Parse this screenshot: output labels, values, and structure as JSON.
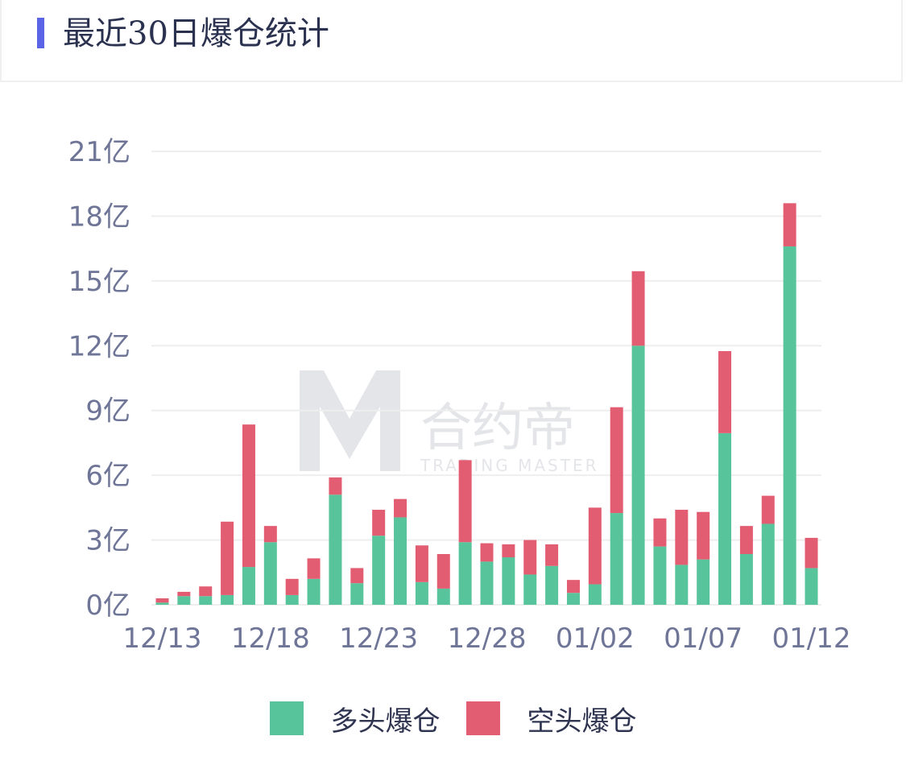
{
  "header": {
    "title": "最近30日爆仓统计"
  },
  "watermark": {
    "brand_cn": "合约帝",
    "brand_en": "TRADING MASTER"
  },
  "legend": {
    "long_label": "多头爆仓",
    "short_label": "空头爆仓",
    "long_color": "#58c49b",
    "short_color": "#e35d72"
  },
  "chart_data": {
    "type": "bar",
    "stacked": true,
    "title": "最近30日爆仓统计",
    "unit": "亿",
    "ylim": [
      0,
      21
    ],
    "yticks": [
      0,
      3,
      6,
      9,
      12,
      15,
      18,
      21
    ],
    "ytick_labels": [
      "0亿",
      "3亿",
      "6亿",
      "9亿",
      "12亿",
      "15亿",
      "18亿",
      "21亿"
    ],
    "xtick_labels": [
      "12/13",
      "12/18",
      "12/23",
      "12/28",
      "01/02",
      "01/07",
      "01/12"
    ],
    "xtick_every": 5,
    "grid": true,
    "legend_position": "bottom",
    "categories": [
      "12/13",
      "12/14",
      "12/15",
      "12/16",
      "12/17",
      "12/18",
      "12/19",
      "12/20",
      "12/21",
      "12/22",
      "12/23",
      "12/24",
      "12/25",
      "12/26",
      "12/27",
      "12/28",
      "12/29",
      "12/30",
      "12/31",
      "01/01",
      "01/02",
      "01/03",
      "01/04",
      "01/05",
      "01/06",
      "01/07",
      "01/08",
      "01/09",
      "01/10",
      "01/11",
      "01/12"
    ],
    "series": [
      {
        "name": "多头爆仓",
        "color": "#58c49b",
        "values": [
          0.1,
          0.4,
          0.4,
          0.45,
          1.75,
          2.9,
          0.45,
          1.2,
          5.1,
          1.0,
          3.2,
          4.05,
          1.05,
          0.75,
          2.9,
          2.0,
          2.2,
          1.4,
          1.8,
          0.55,
          0.95,
          4.25,
          12.0,
          2.7,
          1.85,
          2.1,
          7.95,
          2.35,
          3.75,
          16.6,
          1.7
        ]
      },
      {
        "name": "空头爆仓",
        "color": "#e35d72",
        "values": [
          0.2,
          0.2,
          0.45,
          3.4,
          6.6,
          0.75,
          0.75,
          0.95,
          0.8,
          0.7,
          1.2,
          0.85,
          1.7,
          1.6,
          3.8,
          0.85,
          0.6,
          1.6,
          1.0,
          0.6,
          3.55,
          4.9,
          3.45,
          1.3,
          2.55,
          2.2,
          3.8,
          1.3,
          1.3,
          2.0,
          1.4
        ]
      }
    ]
  }
}
